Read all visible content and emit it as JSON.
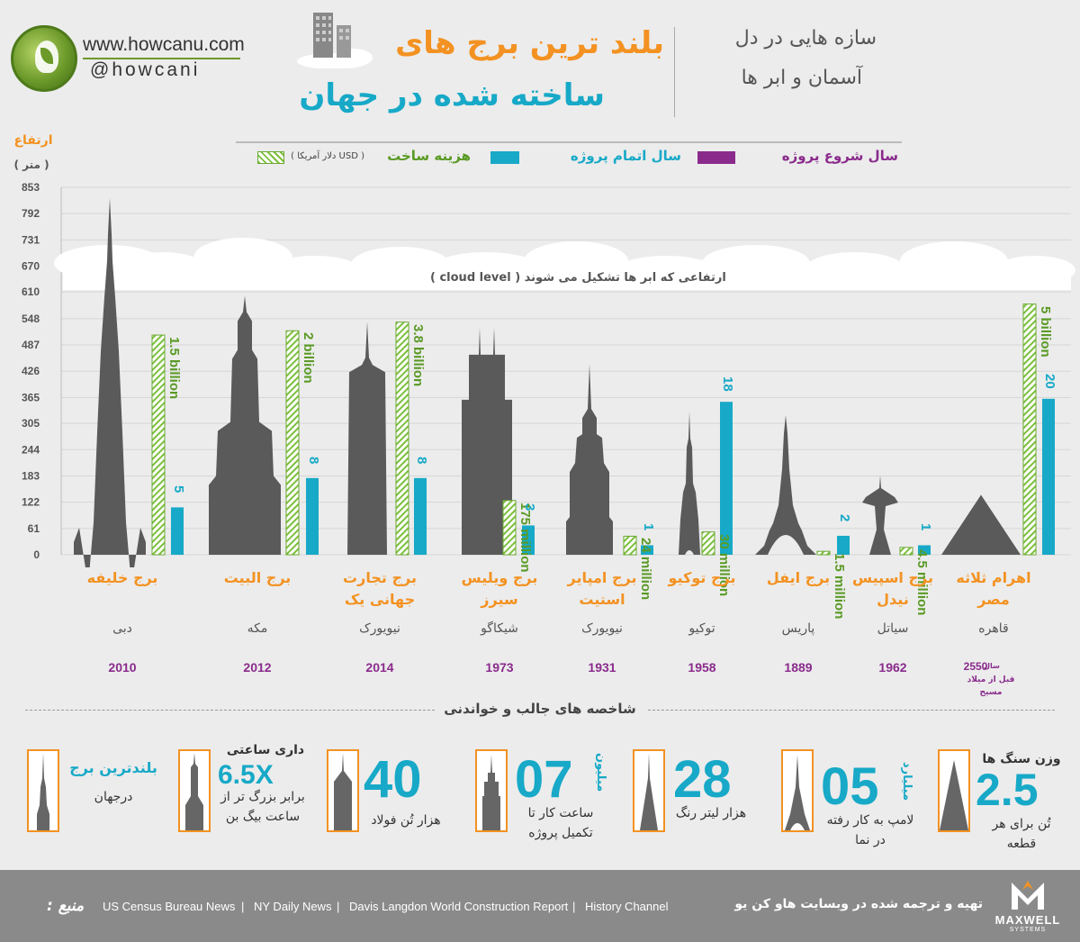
{
  "header": {
    "site_url": "www.howcanu.com",
    "site_handle": "@howcani",
    "title_line1_orange": "بلند ترین برج های",
    "title_line2_teal": "ساخته شده در جهان",
    "subtitle_line1": "سازه هایی در دل",
    "subtitle_line2": "آسمان و ابر ها"
  },
  "legend": {
    "start_year": "سال شروع پروژه",
    "completion_year": "سال اتمام پروژه",
    "cost": "هزینه ساخت",
    "cost_unit": "( دلار آمریکا USD )",
    "start_color": "#8a2b8c",
    "completion_color": "#17a9c7",
    "cost_color": "#7cbf3c"
  },
  "axis": {
    "title": "ارتفاع",
    "unit": "( متر )",
    "ticks": [
      "853",
      "792",
      "731",
      "670",
      "610",
      "548",
      "487",
      "426",
      "365",
      "305",
      "244",
      "183",
      "122",
      "61",
      "0"
    ]
  },
  "cloud_label": "ارتفاعی که ابر ها تشکیل می شوند  ( cloud level )",
  "chart_data": {
    "type": "bar",
    "title": "بلند ترین برج های ساخته شده در جهان",
    "ylabel": "ارتفاع ( متر )",
    "ylim": [
      0,
      853
    ],
    "y_ticks": [
      0,
      61,
      122,
      183,
      244,
      305,
      365,
      426,
      487,
      548,
      610,
      670,
      731,
      792,
      853
    ],
    "cloud_level": 610,
    "series_names": [
      "سال شروع پروژه",
      "سال اتمام پروژه",
      "هزینه ساخت"
    ],
    "buildings": [
      {
        "name": "برج خلیفه",
        "city": "دبی",
        "start_year": "2010",
        "height": 828,
        "cost_label": "1.5 billion",
        "cost_bar": 510,
        "completion": "5",
        "completion_bar": 110
      },
      {
        "name": "برج البیت",
        "city": "مکه",
        "start_year": "2012",
        "height": 601,
        "cost_label": "2 billion",
        "cost_bar": 520,
        "completion": "8",
        "completion_bar": 178
      },
      {
        "name": "برج تجارت جهانی یک",
        "city": "نیویورک",
        "start_year": "2014",
        "height": 541,
        "cost_label": "3.8 billion",
        "cost_bar": 540,
        "completion": "8",
        "completion_bar": 178
      },
      {
        "name": "برج ویلیس سیرز",
        "city": "شیکاگو",
        "start_year": "1973",
        "height": 527,
        "cost_label": "175 million",
        "cost_bar": 126,
        "completion": "3",
        "completion_bar": 68
      },
      {
        "name": "برج امپایر استیت",
        "city": "نیویورک",
        "start_year": "1931",
        "height": 443,
        "cost_label": "24 million",
        "cost_bar": 43,
        "completion": "1",
        "completion_bar": 22
      },
      {
        "name": "برج توکیو",
        "city": "توکیو",
        "start_year": "1958",
        "height": 333,
        "cost_label": "30 million",
        "cost_bar": 53,
        "completion": "18",
        "completion_bar": 355
      },
      {
        "name": "برج ایفل",
        "city": "پاریس",
        "start_year": "1889",
        "height": 324,
        "cost_label": "1.5 million",
        "cost_bar": 8,
        "completion": "2",
        "completion_bar": 44
      },
      {
        "name": "برج اسپیس نیدل",
        "city": "سیاتل",
        "start_year": "1962",
        "height": 184,
        "cost_label": "4.5 million",
        "cost_bar": 17,
        "completion": "1",
        "completion_bar": 22
      },
      {
        "name": "اهرام ثلاثه مصر",
        "city": "قاهره",
        "start_year": "2550",
        "start_year_note1": "سال",
        "start_year_note2": "قبل از میلاد",
        "start_year_note3": "مسیح",
        "height": 139,
        "cost_label": "5 billion",
        "cost_bar": 582,
        "completion": "20",
        "completion_bar": 362
      }
    ]
  },
  "facts": {
    "title": "شاخصه های جالب و خواندنی",
    "items": [
      {
        "big": "2.5",
        "above": "وزن سنگ ها",
        "below": "تُن برای هر قطعه"
      },
      {
        "big": "05",
        "side": "میلیارد",
        "below": "لامپ به کار رفته در نما"
      },
      {
        "big": "28",
        "below": "هزار لیتر رنگ"
      },
      {
        "big": "07",
        "side": "میلیون",
        "below": "ساعت کار تا تکمیل پروژه"
      },
      {
        "big": "40",
        "below": "هزار تُن فولاد"
      },
      {
        "big": "6.5X",
        "above": "داری ساعتی",
        "below": "برابر بزرگ تر از ساعت بیگ بن"
      },
      {
        "big": "بلندترین برج",
        "below": "درجهان"
      }
    ]
  },
  "footer": {
    "source_label": "منبع :",
    "sources": [
      "US Census Bureau News",
      "NY Daily News",
      "Davis Langdon World Construction Report",
      "History Channel"
    ],
    "credit": "تهیه و ترجمه شده در وبسایت هاو کن یو",
    "brand": "MAXWELL",
    "brand_sub": "SYSTEMS"
  },
  "watermark": "@howcani"
}
